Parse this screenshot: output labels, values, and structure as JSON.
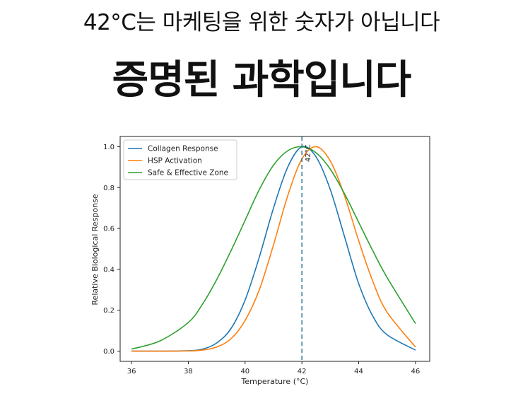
{
  "header": {
    "subtitle": "42°C는 마케팅을 위한 숫자가 아닙니다",
    "title": "증명된 과학입니다"
  },
  "chart_data": {
    "type": "line",
    "xlabel": "Temperature (°C)",
    "ylabel": "Relative Biological Response",
    "xlim": [
      35.6,
      46.5
    ],
    "ylim": [
      -0.05,
      1.05
    ],
    "x_ticks": [
      36,
      38,
      40,
      42,
      44,
      46
    ],
    "y_ticks": [
      0.0,
      0.2,
      0.4,
      0.6,
      0.8,
      1.0
    ],
    "legend_position": "top-left",
    "grid": false,
    "x": [
      36,
      37,
      38,
      38.5,
      39,
      39.5,
      40,
      40.5,
      41,
      41.5,
      42,
      42.5,
      43,
      43.5,
      44,
      44.5,
      45,
      46
    ],
    "series": [
      {
        "name": "Collagen Response",
        "color": "#1f77b4",
        "values": [
          0.0,
          0.0,
          0.002,
          0.01,
          0.04,
          0.11,
          0.25,
          0.46,
          0.7,
          0.9,
          1.0,
          0.95,
          0.79,
          0.56,
          0.33,
          0.17,
          0.08,
          0.005
        ]
      },
      {
        "name": "HSP Activation",
        "color": "#ff7f0e",
        "values": [
          0.0,
          0.0,
          0.001,
          0.005,
          0.02,
          0.06,
          0.15,
          0.3,
          0.52,
          0.76,
          0.94,
          1.0,
          0.93,
          0.76,
          0.54,
          0.34,
          0.19,
          0.02
        ]
      },
      {
        "name": "Safe & Effective Zone",
        "color": "#2ca02c",
        "values": [
          0.01,
          0.05,
          0.14,
          0.23,
          0.35,
          0.49,
          0.64,
          0.79,
          0.91,
          0.98,
          1.0,
          0.97,
          0.89,
          0.77,
          0.63,
          0.49,
          0.36,
          0.135
        ]
      }
    ],
    "annotation": {
      "x": 42,
      "label": "42°C",
      "line_color": "#1f6f8b"
    }
  }
}
